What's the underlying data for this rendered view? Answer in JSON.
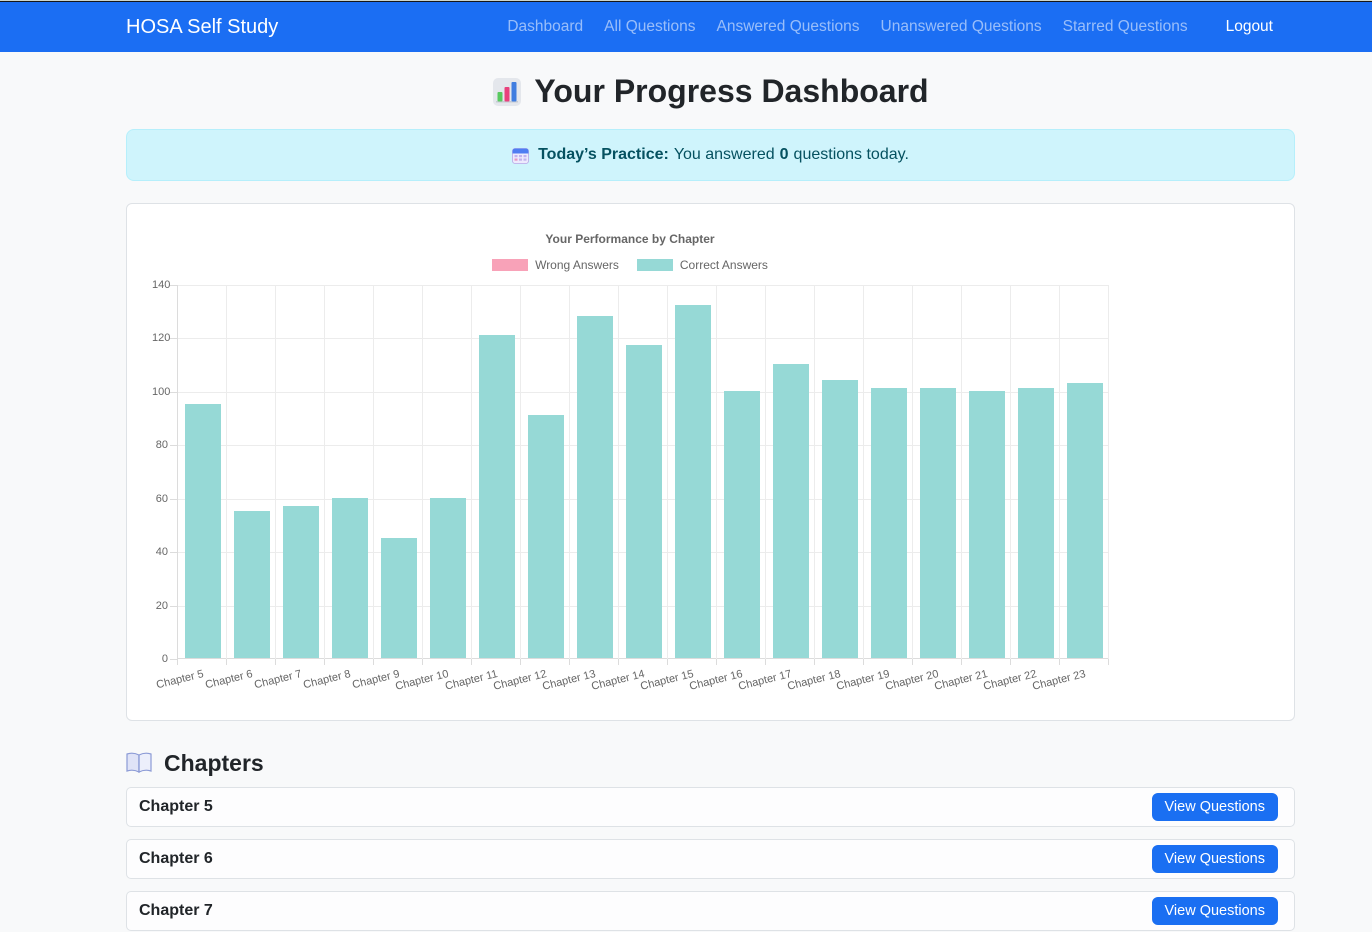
{
  "navbar": {
    "brand": "HOSA Self Study",
    "links": [
      "Dashboard",
      "All Questions",
      "Answered Questions",
      "Unanswered Questions",
      "Starred Questions"
    ],
    "logout_label": "Logout"
  },
  "header": {
    "title": "Your Progress Dashboard"
  },
  "alert": {
    "bold_label": "Today’s Practice:",
    "text_before_count": "You answered",
    "count": "0",
    "text_after_count": "questions today."
  },
  "chart_data": {
    "type": "bar",
    "title": "Your Performance by Chapter",
    "categories": [
      "Chapter 5",
      "Chapter 6",
      "Chapter 7",
      "Chapter 8",
      "Chapter 9",
      "Chapter 10",
      "Chapter 11",
      "Chapter 12",
      "Chapter 13",
      "Chapter 14",
      "Chapter 15",
      "Chapter 16",
      "Chapter 17",
      "Chapter 18",
      "Chapter 19",
      "Chapter 20",
      "Chapter 21",
      "Chapter 22",
      "Chapter 23"
    ],
    "series": [
      {
        "name": "Wrong Answers",
        "color": "#f8a2b8",
        "values": [
          0,
          0,
          0,
          0,
          0,
          0,
          0,
          0,
          0,
          0,
          0,
          0,
          0,
          0,
          0,
          0,
          0,
          0,
          0
        ]
      },
      {
        "name": "Correct Answers",
        "color": "#96d9d6",
        "values": [
          95,
          55,
          57,
          60,
          45,
          60,
          121,
          91,
          128,
          117,
          132,
          100,
          110,
          104,
          101,
          101,
          100,
          101,
          103
        ]
      }
    ],
    "xlabel": "",
    "ylabel": "",
    "ylim": [
      0,
      140
    ],
    "yticks": [
      0,
      20,
      40,
      60,
      80,
      100,
      120,
      140
    ],
    "grid": true,
    "legend_position": "top"
  },
  "chapters": {
    "heading": "Chapters",
    "button_label": "View Questions",
    "items": [
      {
        "label": "Chapter 5"
      },
      {
        "label": "Chapter 6"
      },
      {
        "label": "Chapter 7"
      }
    ]
  },
  "colors": {
    "primary": "#1a6ff2",
    "navbar_bg": "#1b6ef3",
    "alert_bg": "#cff4fc",
    "alert_text": "#055160",
    "bar_teal": "#96d9d6",
    "legend_pink": "#f8a2b8",
    "page_bg": "#f8f9fa",
    "card_border": "#dee2e6",
    "chart_text": "#666666"
  }
}
